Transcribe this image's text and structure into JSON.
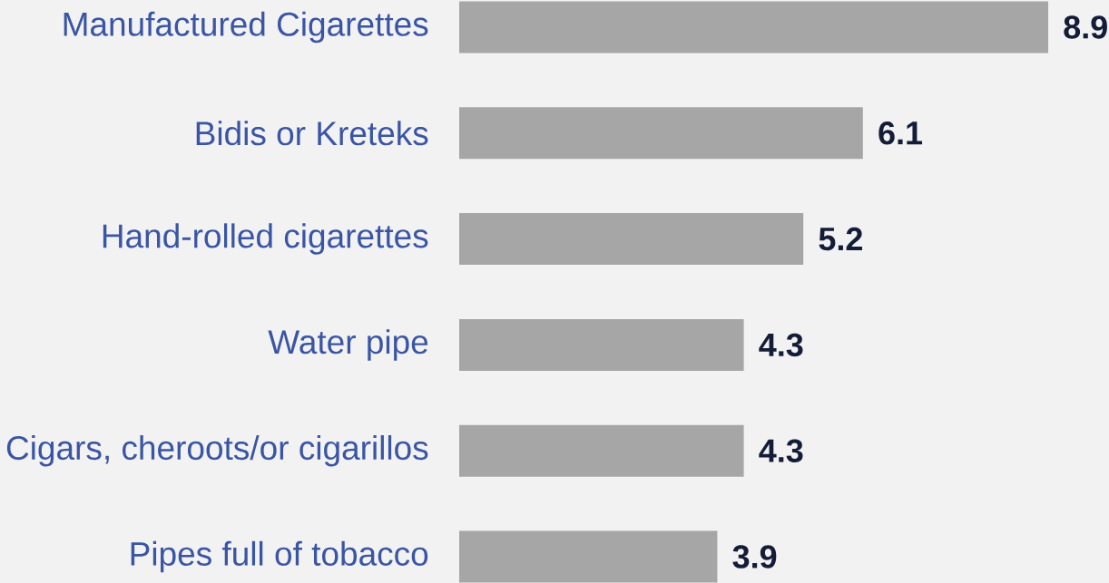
{
  "chart_data": {
    "type": "bar",
    "orientation": "horizontal",
    "categories": [
      "Manufactured Cigarettes",
      "Bidis or Kreteks",
      "Hand-rolled cigarettes",
      "Water pipe",
      "Cigars, cheroots/or cigarillos",
      "Pipes full of tobacco"
    ],
    "values": [
      8.9,
      6.1,
      5.2,
      4.3,
      4.3,
      3.9
    ],
    "color": "#a6a6a6",
    "data_labels": true,
    "tick_labels": "y"
  }
}
